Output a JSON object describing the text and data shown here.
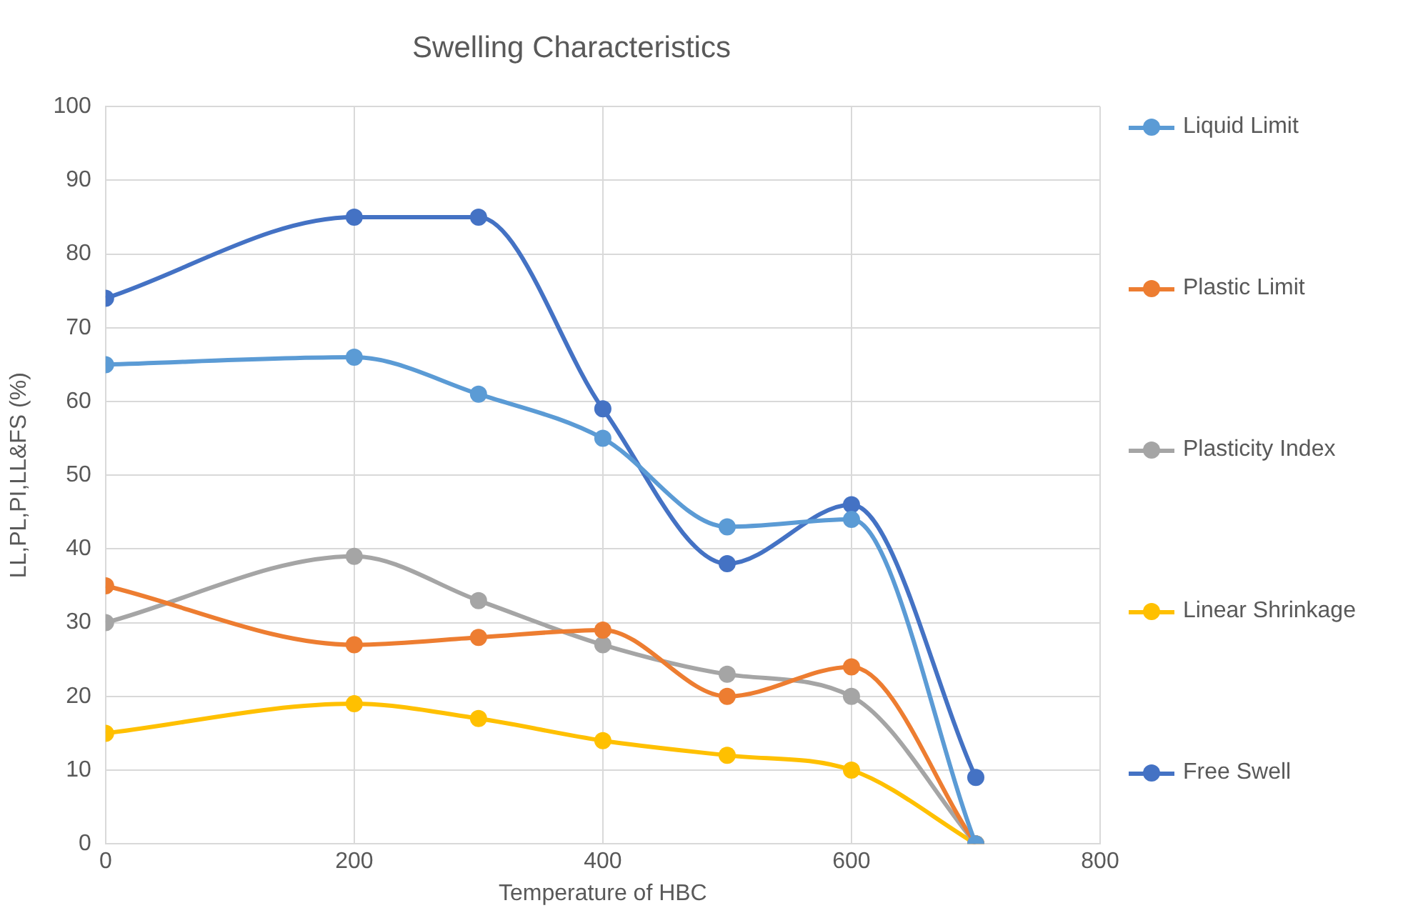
{
  "chart_data": {
    "type": "line",
    "title": "Swelling Characteristics",
    "xlabel": "Temperature of HBC",
    "ylabel": "LL,PL,PI,LL&FS (%)",
    "x": [
      0,
      200,
      300,
      400,
      500,
      600,
      700
    ],
    "xlim": [
      0,
      800
    ],
    "xticks": [
      0,
      200,
      400,
      600,
      800
    ],
    "ylim": [
      0,
      100
    ],
    "yticks": [
      0,
      10,
      20,
      30,
      40,
      50,
      60,
      70,
      80,
      90,
      100
    ],
    "grid": true,
    "legend": "right",
    "marker": "circle",
    "line_style": "solid",
    "series": [
      {
        "name": "Liquid Limit",
        "color": "#5b9bd5",
        "values": [
          65,
          66,
          61,
          55,
          43,
          44,
          0
        ]
      },
      {
        "name": "Plastic Limit",
        "color": "#ed7d31",
        "values": [
          35,
          27,
          28,
          29,
          20,
          24,
          0
        ]
      },
      {
        "name": "Plasticity Index",
        "color": "#a5a5a5",
        "values": [
          30,
          39,
          33,
          27,
          23,
          20,
          0
        ]
      },
      {
        "name": "Linear Shrinkage",
        "color": "#ffc000",
        "values": [
          15,
          19,
          17,
          14,
          12,
          10,
          0
        ]
      },
      {
        "name": "Free Swell",
        "color": "#4472c4",
        "values": [
          74,
          85,
          85,
          59,
          38,
          46,
          9
        ]
      }
    ]
  }
}
